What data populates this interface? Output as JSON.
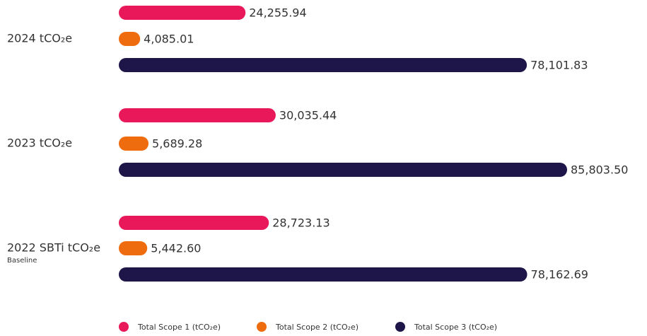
{
  "chart_data": {
    "type": "hbar-grouped",
    "categories": [
      "2024 tCO₂e",
      "2023 tCO₂e",
      "2022 SBTi tCO₂e"
    ],
    "category_sublabels": [
      null,
      null,
      "Baseline"
    ],
    "series": [
      {
        "name": "Total Scope 1 (tCO₂e)",
        "color": "#e8185a",
        "values": [
          24255.94,
          30035.44,
          28723.13
        ],
        "value_labels": [
          "24,255.94",
          "30,035.44",
          "28,723.13"
        ]
      },
      {
        "name": "Total Scope 2 (tCO₂e)",
        "color": "#ef6c0e",
        "values": [
          4085.01,
          5689.28,
          5442.6
        ],
        "value_labels": [
          "4,085.01",
          "5,689.28",
          "5,442.60"
        ]
      },
      {
        "name": "Total Scope 3 (tCO₂e)",
        "color": "#1e1548",
        "values": [
          78101.83,
          85803.5,
          78162.69
        ],
        "value_labels": [
          "78,101.83",
          "85,803.50",
          "78,162.69"
        ]
      }
    ],
    "legend": "bottom"
  }
}
